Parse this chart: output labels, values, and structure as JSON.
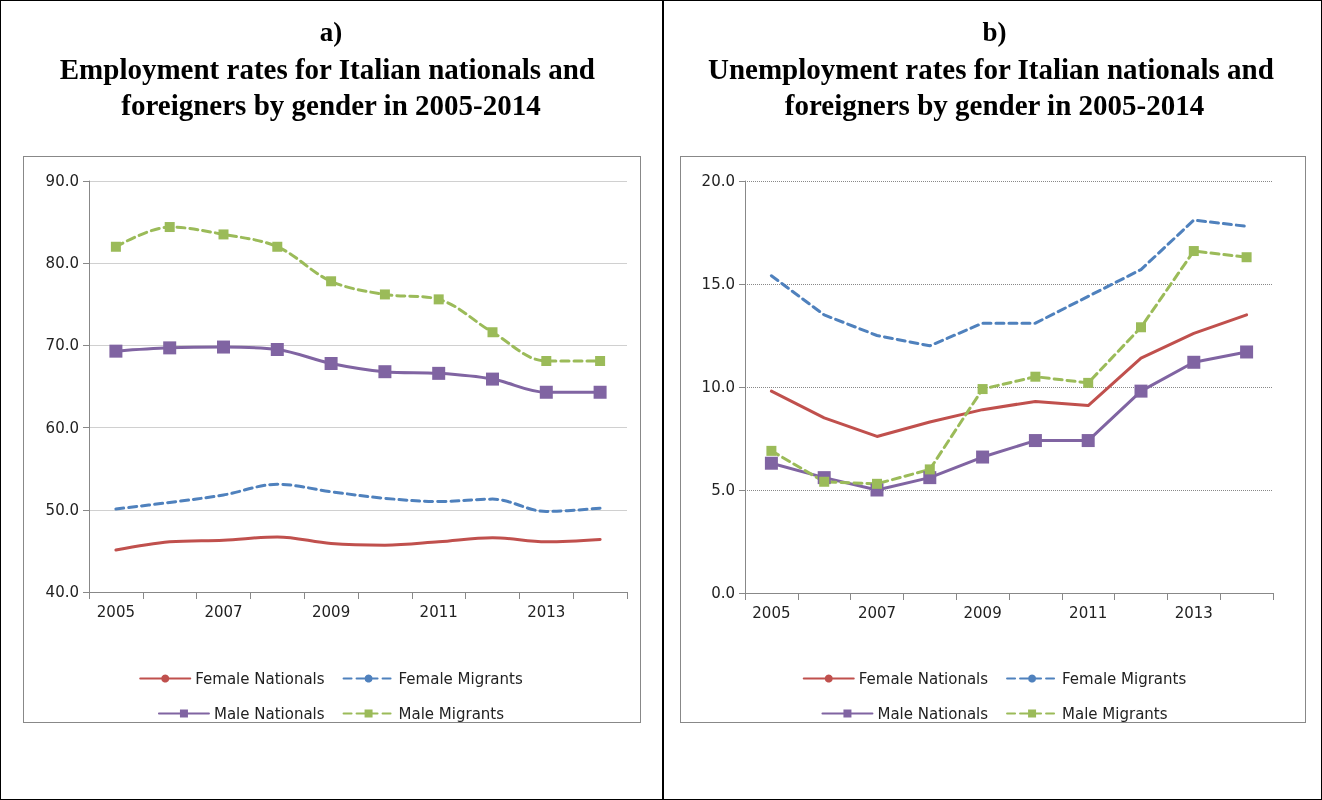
{
  "chart_data": [
    {
      "type": "line",
      "title": "a)",
      "subtitle": "Employment rates for Italian nationals and foreigners by gender in 2005-2014",
      "categories": [
        "2005",
        null,
        "2007",
        null,
        "2009",
        null,
        "2011",
        null,
        "2013",
        null
      ],
      "series": [
        {
          "name": "Female Nationals",
          "color": "#c0504d",
          "line_style": "solid",
          "marker": "none",
          "values": [
            45.1,
            46.1,
            46.3,
            46.7,
            45.9,
            45.7,
            46.1,
            46.6,
            46.1,
            46.4
          ]
        },
        {
          "name": "Female Migrants",
          "color": "#4f81bd",
          "line_style": "dashed",
          "marker": "none",
          "values": [
            50.1,
            50.9,
            51.8,
            53.1,
            52.2,
            51.4,
            51.0,
            51.3,
            49.8,
            50.2
          ]
        },
        {
          "name": "Male Nationals",
          "color": "#8064a2",
          "line_style": "solid",
          "marker": "square",
          "values": [
            69.3,
            69.7,
            69.8,
            69.5,
            67.8,
            66.8,
            66.6,
            65.9,
            64.3,
            64.3
          ]
        },
        {
          "name": "Male Migrants",
          "color": "#9bbb59",
          "line_style": "dashed",
          "marker": "square",
          "values": [
            82.0,
            84.4,
            83.5,
            82.0,
            77.8,
            76.2,
            75.6,
            71.6,
            68.1,
            68.1
          ]
        }
      ],
      "ylim": [
        40,
        90
      ],
      "yticks": [
        {
          "value": 40,
          "label": "40.0"
        },
        {
          "value": 50,
          "label": "50.0"
        },
        {
          "value": 60,
          "label": "60.0"
        },
        {
          "value": 70,
          "label": "70.0"
        },
        {
          "value": 80,
          "label": "80.0"
        },
        {
          "value": 90,
          "label": "90.0"
        }
      ],
      "grid": "y",
      "legend": "bottom"
    },
    {
      "type": "line",
      "title": "b)",
      "subtitle": "Unemployment rates for Italian nationals and foreigners by gender in 2005-2014",
      "categories": [
        "2005",
        null,
        "2007",
        null,
        "2009",
        null,
        "2011",
        null,
        "2013",
        null
      ],
      "series": [
        {
          "name": "Female Nationals",
          "color": "#c0504d",
          "line_style": "solid",
          "marker": "none",
          "values": [
            9.8,
            8.5,
            7.6,
            8.3,
            8.9,
            9.3,
            9.1,
            11.4,
            12.6,
            13.5
          ]
        },
        {
          "name": "Female Migrants",
          "color": "#4f81bd",
          "line_style": "dashed",
          "marker": "none",
          "values": [
            15.4,
            13.5,
            12.5,
            12.0,
            13.1,
            13.1,
            14.4,
            15.7,
            18.1,
            17.8
          ]
        },
        {
          "name": "Male Nationals",
          "color": "#8064a2",
          "line_style": "solid",
          "marker": "square",
          "values": [
            6.3,
            5.6,
            5.0,
            5.6,
            6.6,
            7.4,
            7.4,
            9.8,
            11.2,
            11.7
          ]
        },
        {
          "name": "Male Migrants",
          "color": "#9bbb59",
          "line_style": "dashed",
          "marker": "square",
          "values": [
            6.9,
            5.4,
            5.3,
            6.0,
            9.9,
            10.5,
            10.2,
            12.9,
            16.6,
            16.3
          ]
        }
      ],
      "ylim": [
        0,
        20
      ],
      "yticks": [
        {
          "value": 0,
          "label": "0.0"
        },
        {
          "value": 5,
          "label": "5.0"
        },
        {
          "value": 10,
          "label": "10.0"
        },
        {
          "value": 15,
          "label": "15.0"
        },
        {
          "value": 20,
          "label": "20.0"
        }
      ],
      "grid": "y",
      "legend": "bottom"
    }
  ]
}
